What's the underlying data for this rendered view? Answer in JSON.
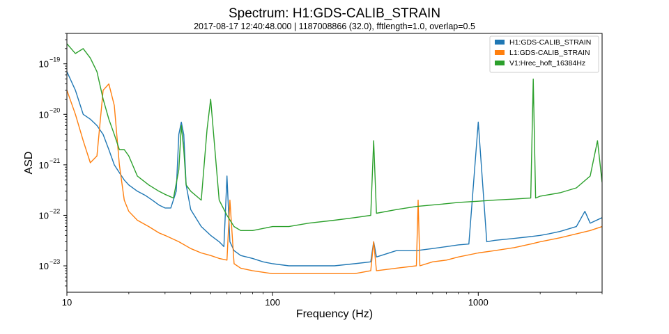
{
  "chart_data": {
    "type": "line",
    "title": "Spectrum: H1:GDS-CALIB_STRAIN",
    "subtitle": "2017-08-17 12:40:48.000 | 1187008866 (32.0), fftlength=1.0, overlap=0.5",
    "xlabel": "Frequency (Hz)",
    "ylabel": "ASD",
    "xscale": "log",
    "yscale": "log",
    "xlim": [
      10,
      4000
    ],
    "ylim": [
      3e-24,
      4e-19
    ],
    "x_ticks": [
      {
        "value": 10,
        "label": "10"
      },
      {
        "value": 100,
        "label": "100"
      },
      {
        "value": 1000,
        "label": "1000"
      }
    ],
    "y_ticks": [
      {
        "value": 1e-23,
        "base": "10",
        "exp": "−23"
      },
      {
        "value": 1e-22,
        "base": "10",
        "exp": "−22"
      },
      {
        "value": 1e-21,
        "base": "10",
        "exp": "−21"
      },
      {
        "value": 1e-20,
        "base": "10",
        "exp": "−20"
      },
      {
        "value": 1e-19,
        "base": "10",
        "exp": "−19"
      }
    ],
    "grid": false,
    "legend_position": "top-right",
    "series": [
      {
        "name": "H1:GDS-CALIB_STRAIN",
        "color": "#1f77b4",
        "x": [
          10,
          11,
          12,
          13,
          14,
          15,
          16,
          17,
          18,
          19,
          20,
          22,
          24,
          26,
          28,
          30,
          32,
          34,
          35,
          36,
          37,
          38,
          40,
          45,
          50,
          55,
          58,
          60,
          62,
          65,
          70,
          80,
          90,
          100,
          120,
          150,
          200,
          250,
          300,
          310,
          320,
          400,
          500,
          600,
          700,
          800,
          900,
          1000,
          1100,
          1200,
          1500,
          1800,
          2000,
          2200,
          2500,
          3000,
          3300,
          3500,
          4000
        ],
        "y": [
          7e-20,
          3e-20,
          1e-20,
          8e-21,
          6e-21,
          4e-21,
          2e-21,
          1e-21,
          7e-22,
          5e-22,
          4e-22,
          3e-22,
          2.5e-22,
          2e-22,
          1.6e-22,
          1.4e-22,
          1.4e-22,
          3e-22,
          4e-21,
          7e-21,
          4e-21,
          4e-22,
          1.3e-22,
          6e-23,
          4e-23,
          3e-23,
          2.4e-23,
          6e-22,
          3e-23,
          2e-23,
          1.6e-23,
          1.4e-23,
          1.2e-23,
          1.1e-23,
          1e-23,
          1e-23,
          1e-23,
          1.1e-23,
          1.2e-23,
          3e-23,
          1.5e-23,
          2e-23,
          2e-23,
          2.2e-23,
          2.4e-23,
          2.6e-23,
          2.7e-23,
          7e-21,
          3e-23,
          3.2e-23,
          3.5e-23,
          3.8e-23,
          4e-23,
          4.3e-23,
          4.8e-23,
          6e-23,
          1.2e-22,
          7e-23,
          9e-23
        ]
      },
      {
        "name": "L1:GDS-CALIB_STRAIN",
        "color": "#ff7f0e",
        "x": [
          10,
          11,
          12,
          13,
          14,
          15,
          16,
          17,
          18,
          19,
          20,
          22,
          25,
          28,
          30,
          35,
          40,
          45,
          50,
          55,
          60,
          62,
          65,
          70,
          80,
          100,
          150,
          200,
          250,
          300,
          310,
          320,
          400,
          500,
          510,
          520,
          600,
          700,
          800,
          1000,
          1200,
          1500,
          1800,
          2000,
          2500,
          3000,
          3500,
          4000
        ],
        "y": [
          3e-20,
          1e-20,
          3e-21,
          1.1e-21,
          1.5e-21,
          3e-20,
          4e-20,
          1.5e-20,
          1e-21,
          2e-22,
          1.2e-22,
          8e-23,
          6e-23,
          4.5e-23,
          4e-23,
          3e-23,
          2.2e-23,
          1.8e-23,
          1.6e-23,
          1.4e-23,
          1.3e-23,
          2e-22,
          1.1e-23,
          9e-24,
          8e-24,
          7e-24,
          7e-24,
          7e-24,
          7e-24,
          8e-24,
          3e-23,
          8e-24,
          9e-24,
          1e-23,
          2e-22,
          1e-23,
          1.2e-23,
          1.3e-23,
          1.5e-23,
          1.8e-23,
          2e-23,
          2.3e-23,
          2.7e-23,
          3e-23,
          3.6e-23,
          4.3e-23,
          5e-23,
          6e-23
        ]
      },
      {
        "name": "V1:Hrec_hoft_16384Hz",
        "color": "#2ca02c",
        "x": [
          10,
          11,
          12,
          13,
          14,
          15,
          16,
          17,
          18,
          19,
          20,
          22,
          25,
          28,
          30,
          33,
          35,
          36,
          37,
          38,
          40,
          45,
          48,
          50,
          52,
          55,
          60,
          65,
          70,
          80,
          100,
          120,
          150,
          200,
          250,
          300,
          310,
          320,
          400,
          500,
          600,
          700,
          800,
          1000,
          1200,
          1500,
          1800,
          1850,
          1900,
          2000,
          2500,
          3000,
          3500,
          3800,
          4000
        ],
        "y": [
          2.5e-19,
          1.6e-19,
          2e-19,
          1.3e-19,
          7e-20,
          2e-20,
          8e-21,
          4e-21,
          2e-21,
          2e-21,
          1.5e-21,
          6e-22,
          4e-22,
          3e-22,
          2.6e-22,
          2.2e-22,
          8e-22,
          6e-21,
          2e-21,
          4e-22,
          3e-22,
          2e-22,
          5e-21,
          2e-20,
          3e-21,
          2e-22,
          1e-22,
          6e-23,
          5e-23,
          5e-23,
          6e-23,
          6e-23,
          7e-23,
          8e-23,
          9e-23,
          1e-22,
          3e-21,
          1.1e-22,
          1.3e-22,
          1.5e-22,
          1.6e-22,
          1.7e-22,
          1.8e-22,
          1.9e-22,
          2e-22,
          2.1e-22,
          2.2e-22,
          5e-20,
          2.2e-22,
          2.4e-22,
          2.8e-22,
          3.5e-22,
          6e-22,
          3e-21,
          4.5e-22
        ]
      }
    ]
  }
}
